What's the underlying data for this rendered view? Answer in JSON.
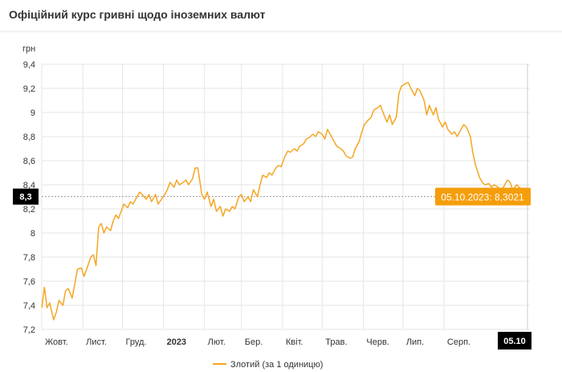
{
  "header": {
    "title": "Офіційний курс гривні щодо іноземних валют"
  },
  "colors": {
    "series": "#f5a623",
    "tooltip": "#f59e0b",
    "grid": "#e6e6e6",
    "current_label_bg": "#000000",
    "crosshair": "#999999"
  },
  "chart_data": {
    "type": "line",
    "ylabel": "грн",
    "ylim": [
      7.2,
      9.4
    ],
    "yticks": [
      "7,2",
      "7,4",
      "7,6",
      "7,8",
      "8",
      "8,2",
      "8,4",
      "8,6",
      "8,8",
      "9",
      "9,2",
      "9,4"
    ],
    "yticks_values": [
      7.2,
      7.4,
      7.6,
      7.8,
      8.0,
      8.2,
      8.4,
      8.6,
      8.8,
      9.0,
      9.2,
      9.4
    ],
    "xlim": [
      "2022-10-01",
      "2023-10-05"
    ],
    "xticks": [
      {
        "label": "Жовт.",
        "date": "2022-10-01"
      },
      {
        "label": "Лист.",
        "date": "2022-11-01"
      },
      {
        "label": "Груд.",
        "date": "2022-12-01"
      },
      {
        "label": "2023",
        "date": "2023-01-01",
        "bold": true
      },
      {
        "label": "Лют.",
        "date": "2023-02-01"
      },
      {
        "label": "Бер.",
        "date": "2023-03-01"
      },
      {
        "label": "Квіт.",
        "date": "2023-04-01"
      },
      {
        "label": "Трав.",
        "date": "2023-05-01"
      },
      {
        "label": "Черв.",
        "date": "2023-06-01"
      },
      {
        "label": "Лип.",
        "date": "2023-07-01"
      },
      {
        "label": "Серп.",
        "date": "2023-08-01"
      }
    ],
    "grid": true,
    "legend_position": "bottom-center",
    "current_x_label": "05.10",
    "current_y_label": "8,3",
    "tooltip": {
      "text": "05.10.2023: 8,3021",
      "date": "2023-10-05",
      "value": 8.3021
    },
    "series": [
      {
        "name": "Злотий (за 1 одиницю)",
        "points": [
          [
            "2022-10-01",
            7.38
          ],
          [
            "2022-10-03",
            7.55
          ],
          [
            "2022-10-05",
            7.38
          ],
          [
            "2022-10-07",
            7.42
          ],
          [
            "2022-10-10",
            7.28
          ],
          [
            "2022-10-12",
            7.34
          ],
          [
            "2022-10-14",
            7.44
          ],
          [
            "2022-10-17",
            7.4
          ],
          [
            "2022-10-19",
            7.52
          ],
          [
            "2022-10-21",
            7.54
          ],
          [
            "2022-10-24",
            7.46
          ],
          [
            "2022-10-26",
            7.58
          ],
          [
            "2022-10-28",
            7.7
          ],
          [
            "2022-10-31",
            7.71
          ],
          [
            "2022-11-02",
            7.64
          ],
          [
            "2022-11-04",
            7.7
          ],
          [
            "2022-11-07",
            7.8
          ],
          [
            "2022-11-09",
            7.82
          ],
          [
            "2022-11-11",
            7.73
          ],
          [
            "2022-11-13",
            8.05
          ],
          [
            "2022-11-15",
            8.08
          ],
          [
            "2022-11-17",
            8.0
          ],
          [
            "2022-11-19",
            8.05
          ],
          [
            "2022-11-22",
            8.02
          ],
          [
            "2022-11-24",
            8.1
          ],
          [
            "2022-11-26",
            8.15
          ],
          [
            "2022-11-28",
            8.12
          ],
          [
            "2022-11-30",
            8.18
          ],
          [
            "2022-12-02",
            8.24
          ],
          [
            "2022-12-05",
            8.21
          ],
          [
            "2022-12-07",
            8.26
          ],
          [
            "2022-12-09",
            8.24
          ],
          [
            "2022-12-12",
            8.3
          ],
          [
            "2022-12-14",
            8.34
          ],
          [
            "2022-12-16",
            8.32
          ],
          [
            "2022-12-19",
            8.28
          ],
          [
            "2022-12-21",
            8.32
          ],
          [
            "2022-12-23",
            8.26
          ],
          [
            "2022-12-26",
            8.32
          ],
          [
            "2022-12-28",
            8.24
          ],
          [
            "2023-01-02",
            8.32
          ],
          [
            "2023-01-04",
            8.36
          ],
          [
            "2023-01-06",
            8.42
          ],
          [
            "2023-01-09",
            8.38
          ],
          [
            "2023-01-11",
            8.44
          ],
          [
            "2023-01-13",
            8.4
          ],
          [
            "2023-01-16",
            8.42
          ],
          [
            "2023-01-18",
            8.44
          ],
          [
            "2023-01-20",
            8.4
          ],
          [
            "2023-01-23",
            8.45
          ],
          [
            "2023-01-25",
            8.54
          ],
          [
            "2023-01-27",
            8.54
          ],
          [
            "2023-01-30",
            8.32
          ],
          [
            "2023-02-01",
            8.28
          ],
          [
            "2023-02-03",
            8.34
          ],
          [
            "2023-02-06",
            8.22
          ],
          [
            "2023-02-08",
            8.28
          ],
          [
            "2023-02-10",
            8.18
          ],
          [
            "2023-02-13",
            8.22
          ],
          [
            "2023-02-15",
            8.14
          ],
          [
            "2023-02-17",
            8.2
          ],
          [
            "2023-02-20",
            8.18
          ],
          [
            "2023-02-22",
            8.22
          ],
          [
            "2023-02-24",
            8.2
          ],
          [
            "2023-02-27",
            8.3
          ],
          [
            "2023-03-01",
            8.32
          ],
          [
            "2023-03-03",
            8.26
          ],
          [
            "2023-03-06",
            8.3
          ],
          [
            "2023-03-08",
            8.26
          ],
          [
            "2023-03-10",
            8.36
          ],
          [
            "2023-03-13",
            8.3
          ],
          [
            "2023-03-15",
            8.4
          ],
          [
            "2023-03-17",
            8.48
          ],
          [
            "2023-03-20",
            8.46
          ],
          [
            "2023-03-22",
            8.5
          ],
          [
            "2023-03-24",
            8.48
          ],
          [
            "2023-03-27",
            8.54
          ],
          [
            "2023-03-29",
            8.56
          ],
          [
            "2023-03-31",
            8.55
          ],
          [
            "2023-04-03",
            8.64
          ],
          [
            "2023-04-05",
            8.68
          ],
          [
            "2023-04-07",
            8.67
          ],
          [
            "2023-04-10",
            8.7
          ],
          [
            "2023-04-12",
            8.68
          ],
          [
            "2023-04-14",
            8.72
          ],
          [
            "2023-04-17",
            8.74
          ],
          [
            "2023-04-19",
            8.78
          ],
          [
            "2023-04-21",
            8.79
          ],
          [
            "2023-04-24",
            8.82
          ],
          [
            "2023-04-26",
            8.8
          ],
          [
            "2023-04-28",
            8.84
          ],
          [
            "2023-05-01",
            8.82
          ],
          [
            "2023-05-03",
            8.78
          ],
          [
            "2023-05-05",
            8.86
          ],
          [
            "2023-05-08",
            8.8
          ],
          [
            "2023-05-10",
            8.76
          ],
          [
            "2023-05-12",
            8.72
          ],
          [
            "2023-05-15",
            8.7
          ],
          [
            "2023-05-17",
            8.68
          ],
          [
            "2023-05-19",
            8.64
          ],
          [
            "2023-05-22",
            8.62
          ],
          [
            "2023-05-24",
            8.63
          ],
          [
            "2023-05-26",
            8.7
          ],
          [
            "2023-05-29",
            8.76
          ],
          [
            "2023-05-31",
            8.84
          ],
          [
            "2023-06-02",
            8.9
          ],
          [
            "2023-06-05",
            8.94
          ],
          [
            "2023-06-07",
            8.96
          ],
          [
            "2023-06-09",
            9.02
          ],
          [
            "2023-06-12",
            9.04
          ],
          [
            "2023-06-14",
            9.06
          ],
          [
            "2023-06-16",
            9.0
          ],
          [
            "2023-06-19",
            8.92
          ],
          [
            "2023-06-21",
            8.98
          ],
          [
            "2023-06-23",
            8.9
          ],
          [
            "2023-06-26",
            8.96
          ],
          [
            "2023-06-28",
            9.16
          ],
          [
            "2023-06-30",
            9.22
          ],
          [
            "2023-07-03",
            9.24
          ],
          [
            "2023-07-05",
            9.25
          ],
          [
            "2023-07-07",
            9.2
          ],
          [
            "2023-07-10",
            9.14
          ],
          [
            "2023-07-12",
            9.2
          ],
          [
            "2023-07-14",
            9.18
          ],
          [
            "2023-07-17",
            9.1
          ],
          [
            "2023-07-19",
            8.98
          ],
          [
            "2023-07-21",
            9.06
          ],
          [
            "2023-07-24",
            8.98
          ],
          [
            "2023-07-26",
            9.04
          ],
          [
            "2023-07-28",
            8.94
          ],
          [
            "2023-07-31",
            8.88
          ],
          [
            "2023-08-02",
            8.92
          ],
          [
            "2023-08-04",
            8.86
          ],
          [
            "2023-08-07",
            8.82
          ],
          [
            "2023-08-09",
            8.84
          ],
          [
            "2023-08-11",
            8.8
          ],
          [
            "2023-08-14",
            8.86
          ],
          [
            "2023-08-16",
            8.9
          ],
          [
            "2023-08-18",
            8.88
          ],
          [
            "2023-08-21",
            8.8
          ],
          [
            "2023-08-23",
            8.66
          ],
          [
            "2023-08-25",
            8.56
          ],
          [
            "2023-08-28",
            8.46
          ],
          [
            "2023-08-30",
            8.42
          ],
          [
            "2023-09-01",
            8.4
          ],
          [
            "2023-09-04",
            8.41
          ],
          [
            "2023-09-06",
            8.38
          ],
          [
            "2023-09-08",
            8.4
          ],
          [
            "2023-09-11",
            8.38
          ],
          [
            "2023-09-13",
            8.36
          ],
          [
            "2023-09-15",
            8.38
          ],
          [
            "2023-09-18",
            8.44
          ],
          [
            "2023-09-20",
            8.42
          ],
          [
            "2023-09-22",
            8.36
          ],
          [
            "2023-09-25",
            8.4
          ],
          [
            "2023-09-27",
            8.38
          ],
          [
            "2023-09-29",
            8.36
          ],
          [
            "2023-10-02",
            8.33
          ],
          [
            "2023-10-05",
            8.3021
          ]
        ]
      }
    ]
  }
}
